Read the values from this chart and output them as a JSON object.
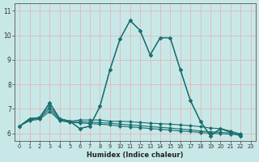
{
  "title": "",
  "xlabel": "Humidex (Indice chaleur)",
  "bg_color": "#c8e8e8",
  "grid_color": "#e0b8b8",
  "line_color": "#1a6e6e",
  "xlim": [
    -0.5,
    23.5
  ],
  "ylim": [
    5.7,
    11.3
  ],
  "yticks": [
    6,
    7,
    8,
    9,
    10,
    11
  ],
  "xticks": [
    0,
    1,
    2,
    3,
    4,
    5,
    6,
    7,
    8,
    9,
    10,
    11,
    12,
    13,
    14,
    15,
    16,
    17,
    18,
    19,
    20,
    21,
    22,
    23
  ],
  "lines": [
    {
      "x": [
        0,
        1,
        2,
        3,
        4,
        5,
        6,
        7,
        8,
        9,
        10,
        11,
        12,
        13,
        14,
        15,
        16,
        17,
        18,
        19,
        20,
        21,
        22
      ],
      "y": [
        6.3,
        6.6,
        6.65,
        7.25,
        6.6,
        6.5,
        6.2,
        6.3,
        7.1,
        8.6,
        9.85,
        10.6,
        10.2,
        9.2,
        9.9,
        9.9,
        8.6,
        7.35,
        6.5,
        5.9,
        6.2,
        6.05,
        5.9
      ],
      "lw": 1.0,
      "ms": 2.5
    },
    {
      "x": [
        0,
        1,
        2,
        3,
        4,
        5,
        6,
        7,
        8,
        9,
        10,
        11,
        12,
        13,
        14,
        15,
        16,
        17,
        18,
        19,
        20,
        21,
        22
      ],
      "y": [
        6.3,
        6.6,
        6.65,
        7.25,
        6.6,
        6.5,
        6.2,
        6.3,
        7.1,
        8.6,
        9.85,
        10.6,
        10.2,
        9.2,
        9.9,
        9.9,
        8.6,
        7.35,
        6.5,
        5.9,
        6.2,
        6.05,
        5.9
      ],
      "lw": 0.8,
      "ms": 2.2
    },
    {
      "x": [
        0,
        1,
        2,
        3,
        4,
        5,
        6,
        7,
        8,
        9,
        10,
        11,
        12,
        13,
        14,
        15,
        16,
        17,
        18,
        19,
        20,
        21,
        22
      ],
      "y": [
        6.3,
        6.6,
        6.65,
        7.1,
        6.6,
        6.5,
        6.55,
        6.55,
        6.55,
        6.5,
        6.5,
        6.48,
        6.45,
        6.42,
        6.4,
        6.38,
        6.35,
        6.32,
        6.28,
        6.22,
        6.2,
        6.1,
        5.98
      ],
      "lw": 0.8,
      "ms": 2.2
    },
    {
      "x": [
        0,
        1,
        2,
        3,
        4,
        5,
        6,
        7,
        8,
        9,
        10,
        11,
        12,
        13,
        14,
        15,
        16,
        17,
        18,
        19,
        20,
        21,
        22
      ],
      "y": [
        6.3,
        6.55,
        6.62,
        7.0,
        6.55,
        6.48,
        6.48,
        6.46,
        6.44,
        6.42,
        6.38,
        6.35,
        6.32,
        6.28,
        6.25,
        6.22,
        6.18,
        6.15,
        6.1,
        6.07,
        6.05,
        6.02,
        5.97
      ],
      "lw": 0.8,
      "ms": 2.2
    },
    {
      "x": [
        0,
        1,
        2,
        3,
        4,
        5,
        6,
        7,
        8,
        9,
        10,
        11,
        12,
        13,
        14,
        15,
        16,
        17,
        18,
        19,
        20,
        21,
        22
      ],
      "y": [
        6.3,
        6.52,
        6.58,
        6.9,
        6.52,
        6.45,
        6.43,
        6.4,
        6.38,
        6.35,
        6.3,
        6.27,
        6.24,
        6.2,
        6.17,
        6.14,
        6.1,
        6.08,
        6.04,
        6.01,
        5.99,
        5.97,
        5.95
      ],
      "lw": 0.8,
      "ms": 2.2
    }
  ]
}
